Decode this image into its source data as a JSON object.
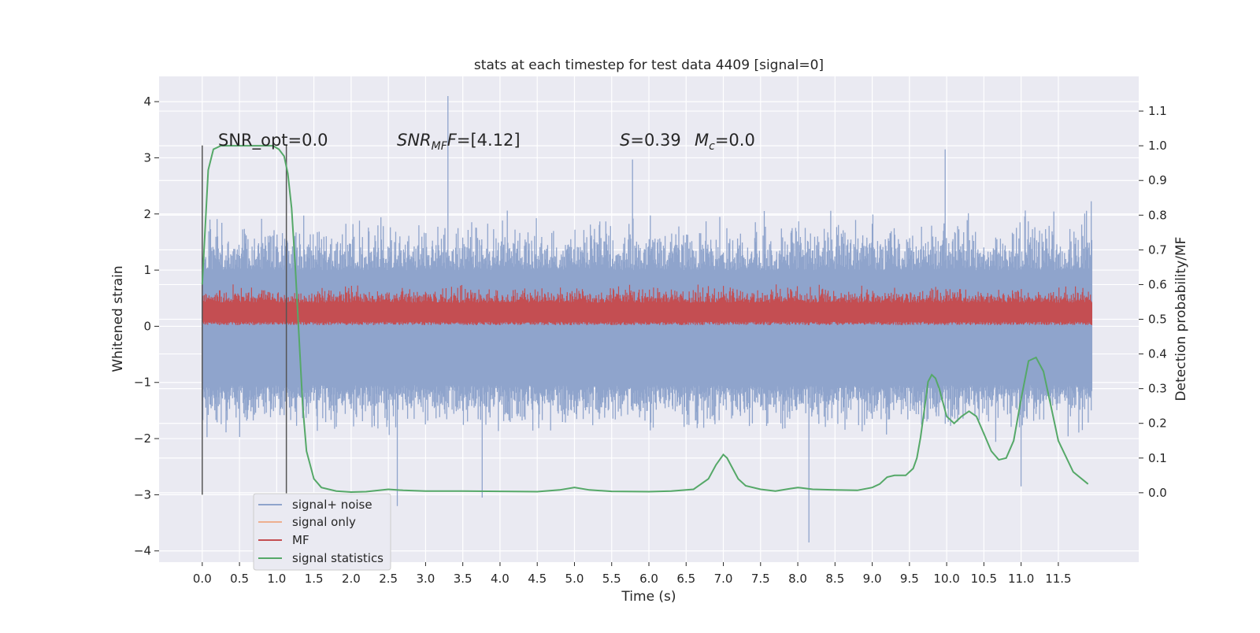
{
  "chart_data": {
    "type": "line",
    "title": "stats at each timestep for test data 4409 [signal=0]",
    "xlabel": "Time (s)",
    "ylabel_left": "Whitened strain",
    "ylabel_right": "Detection probability/MF",
    "xlim": [
      -0.58,
      12.58
    ],
    "ylim_left": [
      -4.2,
      4.45
    ],
    "ylim_right": [
      -0.2,
      1.2
    ],
    "x_ticks": [
      0.0,
      0.5,
      1.0,
      1.5,
      2.0,
      2.5,
      3.0,
      3.5,
      4.0,
      4.5,
      5.0,
      5.5,
      6.0,
      6.5,
      7.0,
      7.5,
      8.0,
      8.5,
      9.0,
      9.5,
      10.0,
      10.5,
      11.0,
      11.5
    ],
    "x_tick_labels": [
      "0.0",
      "0.5",
      "1.0",
      "1.5",
      "2.0",
      "2.5",
      "3.0",
      "3.5",
      "4.0",
      "4.5",
      "5.0",
      "5.5",
      "6.0",
      "6.5",
      "7.0",
      "7.5",
      "8.0",
      "8.5",
      "9.0",
      "9.5",
      "10.0",
      "10.5",
      "11.0",
      "11.5"
    ],
    "y_left_ticks": [
      -4,
      -3,
      -2,
      -1,
      0,
      1,
      2,
      3,
      4
    ],
    "y_left_tick_labels": [
      "−4",
      "−3",
      "−2",
      "−1",
      "0",
      "1",
      "2",
      "3",
      "4"
    ],
    "y_right_ticks": [
      0.0,
      0.1,
      0.2,
      0.3,
      0.4,
      0.5,
      0.6,
      0.7,
      0.8,
      0.9,
      1.0,
      1.1
    ],
    "y_right_tick_labels": [
      "0.0",
      "0.1",
      "0.2",
      "0.3",
      "0.4",
      "0.5",
      "0.6",
      "0.7",
      "0.8",
      "0.9",
      "1.0",
      "1.1"
    ],
    "grid": true,
    "legend_position": "lower-left",
    "annotations": {
      "snr_opt": "SNR_opt=0.0",
      "snr_mf_main": "SNR",
      "snr_mf_sub": "MF",
      "snr_mf_value": "=[4.12]",
      "s_main": "S",
      "s_value": "=0.39",
      "mc_main": "M",
      "mc_sub": "c",
      "mc_value": "=0.0"
    },
    "vertical_markers": {
      "x": [
        0.0,
        1.13
      ],
      "y_range_left": [
        -3.0,
        3.22
      ]
    },
    "noise_envelope": {
      "x_range": [
        0.0,
        11.95
      ],
      "typical_range_left": [
        -1.6,
        2.3
      ],
      "extreme_spikes": [
        {
          "x": 3.3,
          "y": 4.1
        },
        {
          "x": 8.15,
          "y": -3.85
        },
        {
          "x": 9.98,
          "y": 3.15
        },
        {
          "x": 5.78,
          "y": 2.97
        },
        {
          "x": 2.62,
          "y": -3.2
        },
        {
          "x": 3.76,
          "y": -3.05
        },
        {
          "x": 11.0,
          "y": -2.85
        }
      ]
    },
    "mf_band": {
      "x_range": [
        0.0,
        11.95
      ],
      "typical_range_left": [
        0.0,
        0.72
      ]
    },
    "series": [
      {
        "name": "signal+ noise",
        "axis": "left",
        "color": "#8fa4cc"
      },
      {
        "name": "signal only",
        "axis": "left",
        "color": "#eeaf8f",
        "values": []
      },
      {
        "name": "MF",
        "axis": "left",
        "color": "#c44e52"
      },
      {
        "name": "signal statistics",
        "axis": "right",
        "color": "#55a868",
        "x": [
          0.0,
          0.08,
          0.15,
          0.25,
          0.4,
          0.6,
          0.8,
          0.95,
          1.03,
          1.1,
          1.15,
          1.2,
          1.25,
          1.3,
          1.35,
          1.4,
          1.5,
          1.6,
          1.8,
          2.0,
          2.2,
          2.5,
          2.7,
          3.0,
          3.5,
          4.0,
          4.5,
          4.8,
          5.0,
          5.2,
          5.5,
          6.0,
          6.3,
          6.6,
          6.8,
          6.9,
          7.0,
          7.05,
          7.1,
          7.2,
          7.3,
          7.5,
          7.7,
          7.9,
          8.0,
          8.2,
          8.5,
          8.8,
          9.0,
          9.1,
          9.2,
          9.3,
          9.45,
          9.55,
          9.6,
          9.65,
          9.7,
          9.75,
          9.8,
          9.85,
          9.9,
          10.0,
          10.1,
          10.2,
          10.3,
          10.4,
          10.5,
          10.6,
          10.7,
          10.8,
          10.9,
          11.0,
          11.1,
          11.2,
          11.3,
          11.4,
          11.5,
          11.7,
          11.9
        ],
        "y": [
          0.6,
          0.93,
          0.99,
          1.0,
          1.0,
          1.0,
          1.0,
          1.0,
          0.99,
          0.97,
          0.92,
          0.82,
          0.65,
          0.45,
          0.25,
          0.12,
          0.04,
          0.015,
          0.005,
          0.002,
          0.003,
          0.01,
          0.007,
          0.005,
          0.005,
          0.004,
          0.003,
          0.008,
          0.015,
          0.008,
          0.004,
          0.003,
          0.005,
          0.01,
          0.04,
          0.08,
          0.11,
          0.1,
          0.08,
          0.04,
          0.02,
          0.01,
          0.005,
          0.012,
          0.015,
          0.01,
          0.008,
          0.007,
          0.015,
          0.025,
          0.045,
          0.05,
          0.05,
          0.07,
          0.1,
          0.16,
          0.24,
          0.32,
          0.34,
          0.33,
          0.3,
          0.22,
          0.2,
          0.22,
          0.235,
          0.22,
          0.17,
          0.12,
          0.095,
          0.1,
          0.15,
          0.27,
          0.38,
          0.39,
          0.35,
          0.25,
          0.15,
          0.06,
          0.025
        ]
      }
    ]
  }
}
